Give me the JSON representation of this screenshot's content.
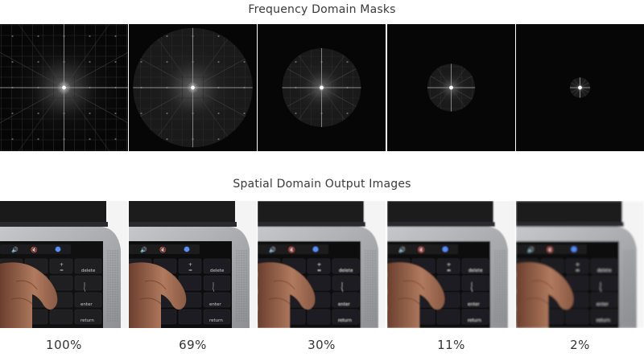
{
  "titles": {
    "frequency": "Frequency Domain Masks",
    "spatial": "Spatial Domain Output Images"
  },
  "panels": [
    {
      "label": "100%",
      "mask_fraction": 1.0
    },
    {
      "label": "69%",
      "mask_fraction": 0.69
    },
    {
      "label": "30%",
      "mask_fraction": 0.3
    },
    {
      "label": "11%",
      "mask_fraction": 0.11
    },
    {
      "label": "2%",
      "mask_fraction": 0.02
    }
  ],
  "keyboard": {
    "delete_key": "delete",
    "enter_key": "enter",
    "return_key": "return",
    "plus_key": "+",
    "equals_key": "=",
    "pipe_key": "|",
    "backslash_key": "\\"
  },
  "colors": {
    "spectrum_bg": "#060606",
    "laptop_body": "#a9aaad",
    "keyboard_bg": "#101010",
    "touchbar": "#1c1c1e",
    "siri": "#5a8cff"
  },
  "icons": [
    "volume-icon",
    "mute-icon",
    "siri-icon"
  ]
}
